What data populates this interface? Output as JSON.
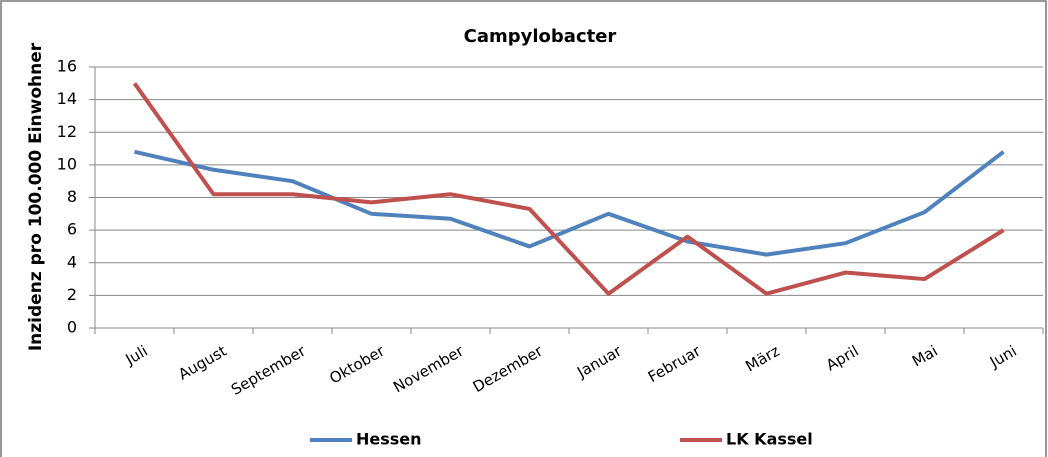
{
  "chart_data": {
    "type": "line",
    "title": "Campylobacter",
    "y_label": "Inzidenz pro 100.000 Einwohner",
    "categories": [
      "Juli",
      "August",
      "September",
      "Oktober",
      "November",
      "Dezember",
      "Januar",
      "Februar",
      "März",
      "April",
      "Mai",
      "Juni"
    ],
    "series": [
      {
        "name": "Hessen",
        "color": "#4f81bd",
        "values": [
          10.8,
          9.7,
          9.0,
          7.0,
          6.7,
          5.0,
          7.0,
          5.3,
          4.5,
          5.2,
          7.1,
          10.8
        ]
      },
      {
        "name": "LK Kassel",
        "color": "#c0504d",
        "values": [
          15.0,
          8.2,
          8.2,
          7.7,
          8.2,
          7.3,
          2.1,
          5.6,
          2.1,
          3.4,
          3.0,
          6.0
        ]
      }
    ],
    "ylim": [
      0,
      16
    ],
    "yticks": [
      0,
      2,
      4,
      6,
      8,
      10,
      12,
      14,
      16
    ],
    "grid": true,
    "legend": "bottom"
  }
}
